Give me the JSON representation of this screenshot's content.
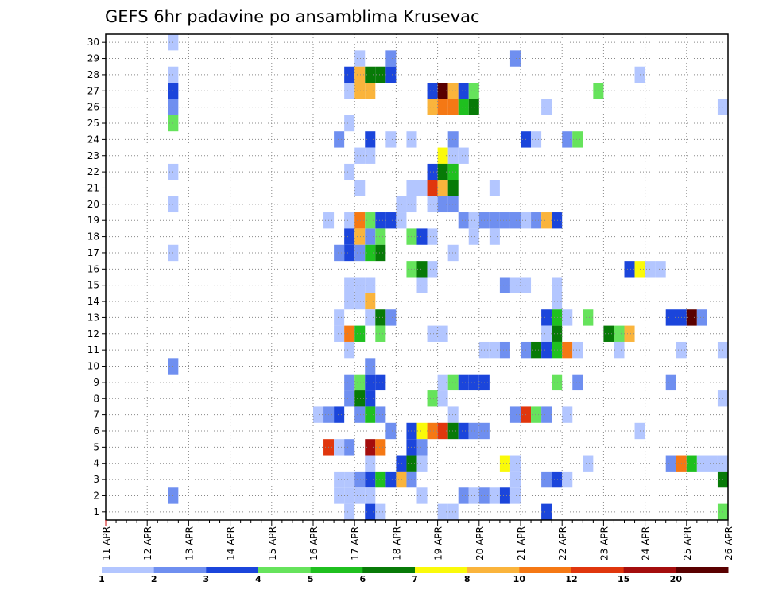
{
  "chart_data": {
    "type": "heatmap",
    "title": "GEFS 6hr padavine po ansamblima Krusevac",
    "xlabel": "",
    "ylabel": "",
    "x_tick_labels": [
      "11 APR",
      "12 APR",
      "13 APR",
      "14 APR",
      "15 APR",
      "16 APR",
      "17 APR",
      "18 APR",
      "19 APR",
      "20 APR",
      "21 APR",
      "22 APR",
      "23 APR",
      "24 APR",
      "25 APR",
      "26 APR"
    ],
    "y_tick_labels": [
      "1",
      "2",
      "3",
      "4",
      "5",
      "6",
      "7",
      "8",
      "9",
      "10",
      "11",
      "12",
      "13",
      "14",
      "15",
      "16",
      "17",
      "18",
      "19",
      "20",
      "21",
      "22",
      "23",
      "24",
      "25",
      "26",
      "27",
      "28",
      "29",
      "30"
    ],
    "x_axis_note": "x = 6-hour step index (0 = 11 APR 00Z, 4 steps per day, 60 = 26 APR 00Z)",
    "xlim": [
      0,
      60
    ],
    "ylim": [
      0.5,
      30.5
    ],
    "grid": true,
    "legend_position": "bottom",
    "legend_labels": [
      "1",
      "2",
      "3",
      "4",
      "5",
      "6",
      "7",
      "8",
      "10",
      "12",
      "15",
      "20"
    ],
    "legend_colors": [
      "#b3c6ff",
      "#6f8ff0",
      "#1b45db",
      "#66e35c",
      "#1fc01f",
      "#077a07",
      "#fafa0a",
      "#fab43c",
      "#f57814",
      "#e0360d",
      "#a40d0d",
      "#5a0000"
    ],
    "cells": [
      {
        "m": 30,
        "x": [
          [
            6.5,
            1
          ]
        ]
      },
      {
        "m": 29,
        "x": [
          [
            24.5,
            1
          ],
          [
            27.5,
            2
          ],
          [
            39.5,
            2
          ]
        ]
      },
      {
        "m": 28,
        "x": [
          [
            6.5,
            1
          ],
          [
            23.5,
            3
          ],
          [
            24.5,
            8
          ],
          [
            25.5,
            6
          ],
          [
            26.5,
            6
          ],
          [
            27.5,
            3
          ],
          [
            51.5,
            1
          ]
        ]
      },
      {
        "m": 27,
        "x": [
          [
            6.5,
            3
          ],
          [
            23.5,
            1
          ],
          [
            24.5,
            8
          ],
          [
            25.5,
            8
          ],
          [
            31.5,
            3
          ],
          [
            32.5,
            12
          ],
          [
            33.5,
            8
          ],
          [
            34.5,
            3
          ],
          [
            35.5,
            4
          ],
          [
            47.5,
            4
          ]
        ]
      },
      {
        "m": 26,
        "x": [
          [
            6.5,
            2
          ],
          [
            31.5,
            8
          ],
          [
            32.5,
            9
          ],
          [
            33.5,
            9
          ],
          [
            34.5,
            5
          ],
          [
            35.5,
            6
          ],
          [
            42.5,
            1
          ],
          [
            59.5,
            1
          ]
        ]
      },
      {
        "m": 25,
        "x": [
          [
            6.5,
            4
          ],
          [
            23.5,
            1
          ]
        ]
      },
      {
        "m": 24,
        "x": [
          [
            22.5,
            2
          ],
          [
            25.5,
            3
          ],
          [
            27.5,
            1
          ],
          [
            29.5,
            1
          ],
          [
            33.5,
            2
          ],
          [
            40.5,
            3
          ],
          [
            41.5,
            1
          ],
          [
            44.5,
            2
          ],
          [
            45.5,
            4
          ]
        ]
      },
      {
        "m": 23,
        "x": [
          [
            24.5,
            1
          ],
          [
            25.5,
            1
          ],
          [
            32.5,
            7
          ],
          [
            33.5,
            1
          ],
          [
            34.5,
            1
          ]
        ]
      },
      {
        "m": 22,
        "x": [
          [
            6.5,
            1
          ],
          [
            23.5,
            1
          ],
          [
            31.5,
            3
          ],
          [
            32.5,
            6
          ],
          [
            33.5,
            5
          ]
        ]
      },
      {
        "m": 21,
        "x": [
          [
            24.5,
            1
          ],
          [
            29.5,
            1
          ],
          [
            30.5,
            1
          ],
          [
            31.5,
            10
          ],
          [
            32.5,
            8
          ],
          [
            33.5,
            6
          ],
          [
            37.5,
            1
          ]
        ]
      },
      {
        "m": 20,
        "x": [
          [
            6.5,
            1
          ],
          [
            28.5,
            1
          ],
          [
            29.5,
            1
          ],
          [
            31.5,
            1
          ],
          [
            32.5,
            2
          ],
          [
            33.5,
            2
          ]
        ]
      },
      {
        "m": 19,
        "x": [
          [
            21.5,
            1
          ],
          [
            23.5,
            1
          ],
          [
            24.5,
            9
          ],
          [
            25.5,
            4
          ],
          [
            26.5,
            3
          ],
          [
            27.5,
            3
          ],
          [
            28.5,
            1
          ],
          [
            34.5,
            2
          ],
          [
            35.5,
            1
          ],
          [
            36.5,
            2
          ],
          [
            37.5,
            2
          ],
          [
            38.5,
            2
          ],
          [
            39.5,
            2
          ],
          [
            40.5,
            1
          ],
          [
            41.5,
            2
          ],
          [
            42.5,
            8
          ],
          [
            43.5,
            3
          ]
        ]
      },
      {
        "m": 18,
        "x": [
          [
            23.5,
            3
          ],
          [
            24.5,
            8
          ],
          [
            25.5,
            2
          ],
          [
            26.5,
            4
          ],
          [
            29.5,
            4
          ],
          [
            30.5,
            3
          ],
          [
            31.5,
            1
          ],
          [
            35.5,
            1
          ],
          [
            37.5,
            1
          ]
        ]
      },
      {
        "m": 17,
        "x": [
          [
            6.5,
            1
          ],
          [
            22.5,
            2
          ],
          [
            23.5,
            3
          ],
          [
            24.5,
            2
          ],
          [
            25.5,
            5
          ],
          [
            26.5,
            6
          ],
          [
            33.5,
            1
          ]
        ]
      },
      {
        "m": 16,
        "x": [
          [
            29.5,
            4
          ],
          [
            30.5,
            6
          ],
          [
            31.5,
            1
          ],
          [
            50.5,
            3
          ],
          [
            51.5,
            7
          ],
          [
            52.5,
            1
          ],
          [
            53.5,
            1
          ]
        ]
      },
      {
        "m": 15,
        "x": [
          [
            23.5,
            1
          ],
          [
            24.5,
            1
          ],
          [
            25.5,
            1
          ],
          [
            30.5,
            1
          ],
          [
            38.5,
            2
          ],
          [
            39.5,
            1
          ],
          [
            40.5,
            1
          ],
          [
            43.5,
            1
          ]
        ]
      },
      {
        "m": 14,
        "x": [
          [
            23.5,
            1
          ],
          [
            24.5,
            1
          ],
          [
            25.5,
            8
          ],
          [
            43.5,
            1
          ]
        ]
      },
      {
        "m": 13,
        "x": [
          [
            22.5,
            1
          ],
          [
            25.5,
            1
          ],
          [
            26.5,
            6
          ],
          [
            27.5,
            2
          ],
          [
            42.5,
            3
          ],
          [
            43.5,
            5
          ],
          [
            44.5,
            1
          ],
          [
            46.5,
            4
          ],
          [
            54.5,
            3
          ],
          [
            55.5,
            3
          ],
          [
            56.5,
            12
          ],
          [
            57.5,
            2
          ]
        ]
      },
      {
        "m": 12,
        "x": [
          [
            22.5,
            1
          ],
          [
            23.5,
            9
          ],
          [
            24.5,
            5
          ],
          [
            26.5,
            4
          ],
          [
            31.5,
            1
          ],
          [
            32.5,
            1
          ],
          [
            42.5,
            1
          ],
          [
            43.5,
            6
          ],
          [
            48.5,
            6
          ],
          [
            49.5,
            4
          ],
          [
            50.5,
            8
          ]
        ]
      },
      {
        "m": 11,
        "x": [
          [
            23.5,
            1
          ],
          [
            36.5,
            1
          ],
          [
            37.5,
            1
          ],
          [
            38.5,
            2
          ],
          [
            40.5,
            2
          ],
          [
            41.5,
            6
          ],
          [
            42.5,
            3
          ],
          [
            43.5,
            5
          ],
          [
            44.5,
            9
          ],
          [
            45.5,
            1
          ],
          [
            49.5,
            1
          ],
          [
            55.5,
            1
          ],
          [
            59.5,
            1
          ]
        ]
      },
      {
        "m": 10,
        "x": [
          [
            6.5,
            2
          ],
          [
            25.5,
            2
          ]
        ]
      },
      {
        "m": 9,
        "x": [
          [
            23.5,
            2
          ],
          [
            24.5,
            4
          ],
          [
            25.5,
            3
          ],
          [
            26.5,
            3
          ],
          [
            32.5,
            1
          ],
          [
            33.5,
            4
          ],
          [
            34.5,
            3
          ],
          [
            35.5,
            3
          ],
          [
            36.5,
            3
          ],
          [
            43.5,
            4
          ],
          [
            45.5,
            2
          ],
          [
            54.5,
            2
          ]
        ]
      },
      {
        "m": 8,
        "x": [
          [
            23.5,
            2
          ],
          [
            24.5,
            6
          ],
          [
            25.5,
            3
          ],
          [
            31.5,
            4
          ],
          [
            32.5,
            1
          ],
          [
            59.5,
            1
          ]
        ]
      },
      {
        "m": 7,
        "x": [
          [
            20.5,
            1
          ],
          [
            21.5,
            2
          ],
          [
            22.5,
            3
          ],
          [
            24.5,
            2
          ],
          [
            25.5,
            5
          ],
          [
            26.5,
            2
          ],
          [
            33.5,
            1
          ],
          [
            39.5,
            2
          ],
          [
            40.5,
            10
          ],
          [
            41.5,
            4
          ],
          [
            42.5,
            2
          ],
          [
            44.5,
            1
          ]
        ]
      },
      {
        "m": 6,
        "x": [
          [
            27.5,
            2
          ],
          [
            29.5,
            3
          ],
          [
            30.5,
            7
          ],
          [
            31.5,
            9
          ],
          [
            32.5,
            10
          ],
          [
            33.5,
            6
          ],
          [
            34.5,
            3
          ],
          [
            35.5,
            2
          ],
          [
            36.5,
            2
          ],
          [
            51.5,
            1
          ]
        ]
      },
      {
        "m": 5,
        "x": [
          [
            21.5,
            10
          ],
          [
            22.5,
            1
          ],
          [
            23.5,
            2
          ],
          [
            25.5,
            11
          ],
          [
            26.5,
            9
          ],
          [
            29.5,
            3
          ],
          [
            30.5,
            2
          ]
        ]
      },
      {
        "m": 4,
        "x": [
          [
            25.5,
            1
          ],
          [
            28.5,
            3
          ],
          [
            29.5,
            6
          ],
          [
            30.5,
            1
          ],
          [
            38.5,
            7
          ],
          [
            39.5,
            1
          ],
          [
            46.5,
            1
          ],
          [
            54.5,
            2
          ],
          [
            55.5,
            9
          ],
          [
            56.5,
            5
          ],
          [
            57.5,
            1
          ],
          [
            58.5,
            1
          ],
          [
            59.5,
            1
          ]
        ]
      },
      {
        "m": 3,
        "x": [
          [
            22.5,
            1
          ],
          [
            23.5,
            1
          ],
          [
            24.5,
            2
          ],
          [
            25.5,
            3
          ],
          [
            26.5,
            5
          ],
          [
            27.5,
            3
          ],
          [
            28.5,
            8
          ],
          [
            29.5,
            2
          ],
          [
            39.5,
            1
          ],
          [
            42.5,
            2
          ],
          [
            43.5,
            3
          ],
          [
            44.5,
            1
          ],
          [
            59.5,
            6
          ]
        ]
      },
      {
        "m": 2,
        "x": [
          [
            6.5,
            2
          ],
          [
            22.5,
            1
          ],
          [
            23.5,
            1
          ],
          [
            24.5,
            1
          ],
          [
            25.5,
            1
          ],
          [
            30.5,
            1
          ],
          [
            34.5,
            2
          ],
          [
            35.5,
            1
          ],
          [
            36.5,
            2
          ],
          [
            37.5,
            1
          ],
          [
            38.5,
            3
          ],
          [
            39.5,
            1
          ]
        ]
      },
      {
        "m": 1,
        "x": [
          [
            23.5,
            1
          ],
          [
            25.5,
            3
          ],
          [
            26.5,
            1
          ],
          [
            32.5,
            1
          ],
          [
            33.5,
            1
          ],
          [
            42.5,
            3
          ],
          [
            59.5,
            4
          ]
        ]
      }
    ]
  }
}
